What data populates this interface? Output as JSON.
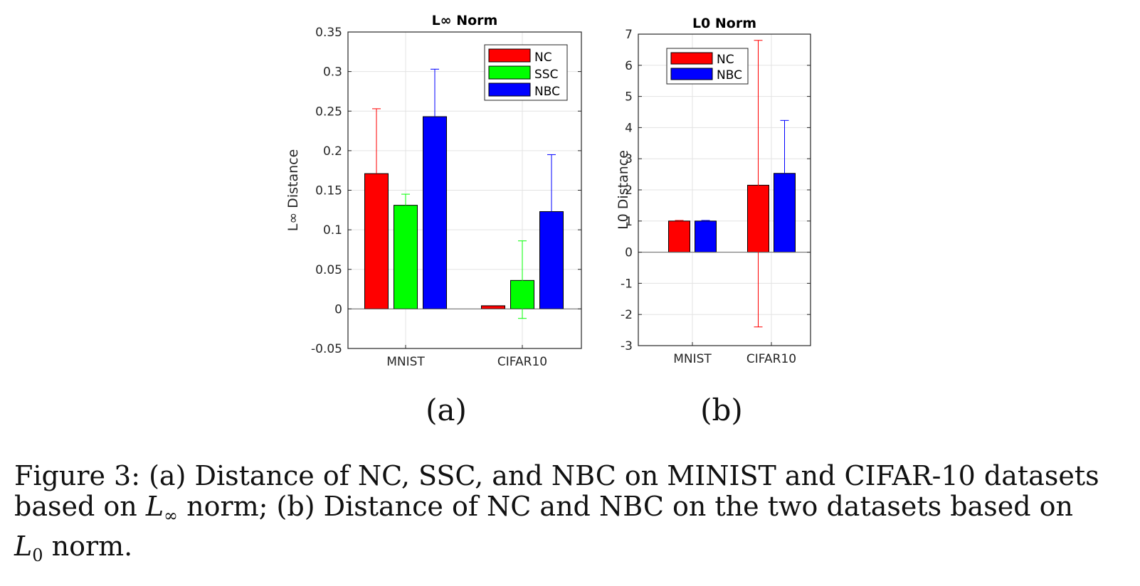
{
  "chart_data": [
    {
      "type": "bar",
      "title": "L∞ Norm",
      "ylabel": "L∞ Distance",
      "xlabel": "",
      "categories": [
        "MNIST",
        "CIFAR10"
      ],
      "ylim": [
        -0.05,
        0.35
      ],
      "yticks": [
        -0.05,
        0,
        0.05,
        0.1,
        0.15,
        0.2,
        0.25,
        0.3,
        0.35
      ],
      "ytick_labels": [
        "-0.05",
        "0",
        "0.05",
        "0.1",
        "0.15",
        "0.2",
        "0.25",
        "0.3",
        "0.35"
      ],
      "grid": true,
      "legend_position": "top-right",
      "series": [
        {
          "name": "NC",
          "color": "#ff0000",
          "values": [
            0.171,
            0.004
          ],
          "err_upper": [
            0.253,
            0.004
          ],
          "err_lower": [
            0.171,
            0.004
          ]
        },
        {
          "name": "SSC",
          "color": "#00ff00",
          "values": [
            0.131,
            0.036
          ],
          "err_upper": [
            0.145,
            0.086
          ],
          "err_lower": [
            0.131,
            -0.012
          ]
        },
        {
          "name": "NBC",
          "color": "#0000ff",
          "values": [
            0.243,
            0.123
          ],
          "err_upper": [
            0.303,
            0.195
          ],
          "err_lower": [
            0.243,
            0.123
          ]
        }
      ]
    },
    {
      "type": "bar",
      "title": "L0 Norm",
      "ylabel": "L0 Distance",
      "xlabel": "",
      "categories": [
        "MNIST",
        "CIFAR10"
      ],
      "ylim": [
        -3,
        7
      ],
      "yticks": [
        -3,
        -2,
        -1,
        0,
        1,
        2,
        3,
        4,
        5,
        6,
        7
      ],
      "ytick_labels": [
        "-3",
        "-2",
        "-1",
        "0",
        "1",
        "2",
        "3",
        "4",
        "5",
        "6",
        "7"
      ],
      "grid": true,
      "legend_position": "top-left",
      "series": [
        {
          "name": "NC",
          "color": "#ff0000",
          "values": [
            1.0,
            2.15
          ],
          "err_upper": [
            1.02,
            6.8
          ],
          "err_lower": [
            1.0,
            -2.4
          ]
        },
        {
          "name": "NBC",
          "color": "#0000ff",
          "values": [
            1.0,
            2.53
          ],
          "err_upper": [
            1.02,
            4.23
          ],
          "err_lower": [
            1.0,
            2.53
          ]
        }
      ]
    }
  ],
  "subfigure_labels": [
    "(a)",
    "(b)"
  ],
  "caption": {
    "line1": "Figure 3: (a) Distance of NC, SSC, and NBC on MINIST and CIFAR-10 datasets",
    "line2_a": "based on ",
    "line2_math": "L",
    "line2_math_sub": "∞",
    "line2_b": " norm; (b) Distance of NC and NBC on the two datasets based on",
    "line3_math": "L",
    "line3_math_sub": "0",
    "line3_b": " norm."
  }
}
